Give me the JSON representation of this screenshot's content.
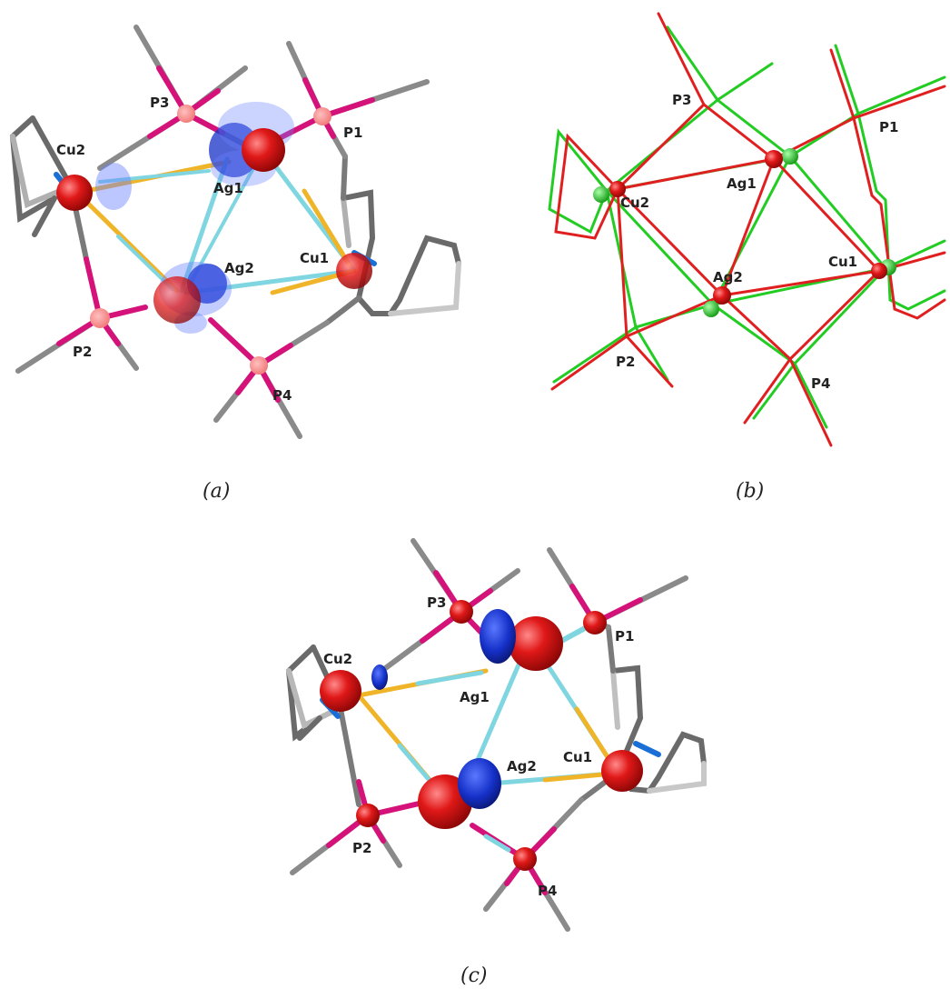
{
  "colors": {
    "metal": "#e01818",
    "phosphorus": "#d4127a",
    "carbon": "#8a8a8a",
    "nitrogen": "#1a6fd6",
    "cu_bond": "#f0b429",
    "ag_bond": "#7fd6e0",
    "density": "#1530c8",
    "overlay_red": "#e02020",
    "overlay_green": "#22cc22"
  },
  "panels": [
    {
      "caption": "(a)",
      "style": "ball-and-stick with translucent difference density",
      "atoms": [
        {
          "id": "Cu2",
          "label": "Cu2"
        },
        {
          "id": "Ag1",
          "label": "Ag1"
        },
        {
          "id": "Ag2",
          "label": "Ag2"
        },
        {
          "id": "Cu1",
          "label": "Cu1"
        },
        {
          "id": "P1",
          "label": "P1"
        },
        {
          "id": "P2",
          "label": "P2"
        },
        {
          "id": "P3",
          "label": "P3"
        },
        {
          "id": "P4",
          "label": "P4"
        }
      ]
    },
    {
      "caption": "(b)",
      "style": "wireframe overlay of two structures (red and green)",
      "atoms": [
        {
          "id": "P3",
          "label": "P3"
        },
        {
          "id": "P1",
          "label": "P1"
        },
        {
          "id": "Ag1",
          "label": "Ag1"
        },
        {
          "id": "Cu2",
          "label": "Cu2"
        },
        {
          "id": "Cu1",
          "label": "Cu1"
        },
        {
          "id": "Ag2",
          "label": "Ag2"
        },
        {
          "id": "P2",
          "label": "P2"
        },
        {
          "id": "P4",
          "label": "P4"
        }
      ]
    },
    {
      "caption": "(c)",
      "style": "ball-and-stick with solid density lobes",
      "atoms": [
        {
          "id": "P3",
          "label": "P3"
        },
        {
          "id": "P1",
          "label": "P1"
        },
        {
          "id": "Cu2",
          "label": "Cu2"
        },
        {
          "id": "Ag1",
          "label": "Ag1"
        },
        {
          "id": "Ag2",
          "label": "Ag2"
        },
        {
          "id": "Cu1",
          "label": "Cu1"
        },
        {
          "id": "P2",
          "label": "P2"
        },
        {
          "id": "P4",
          "label": "P4"
        }
      ]
    }
  ]
}
